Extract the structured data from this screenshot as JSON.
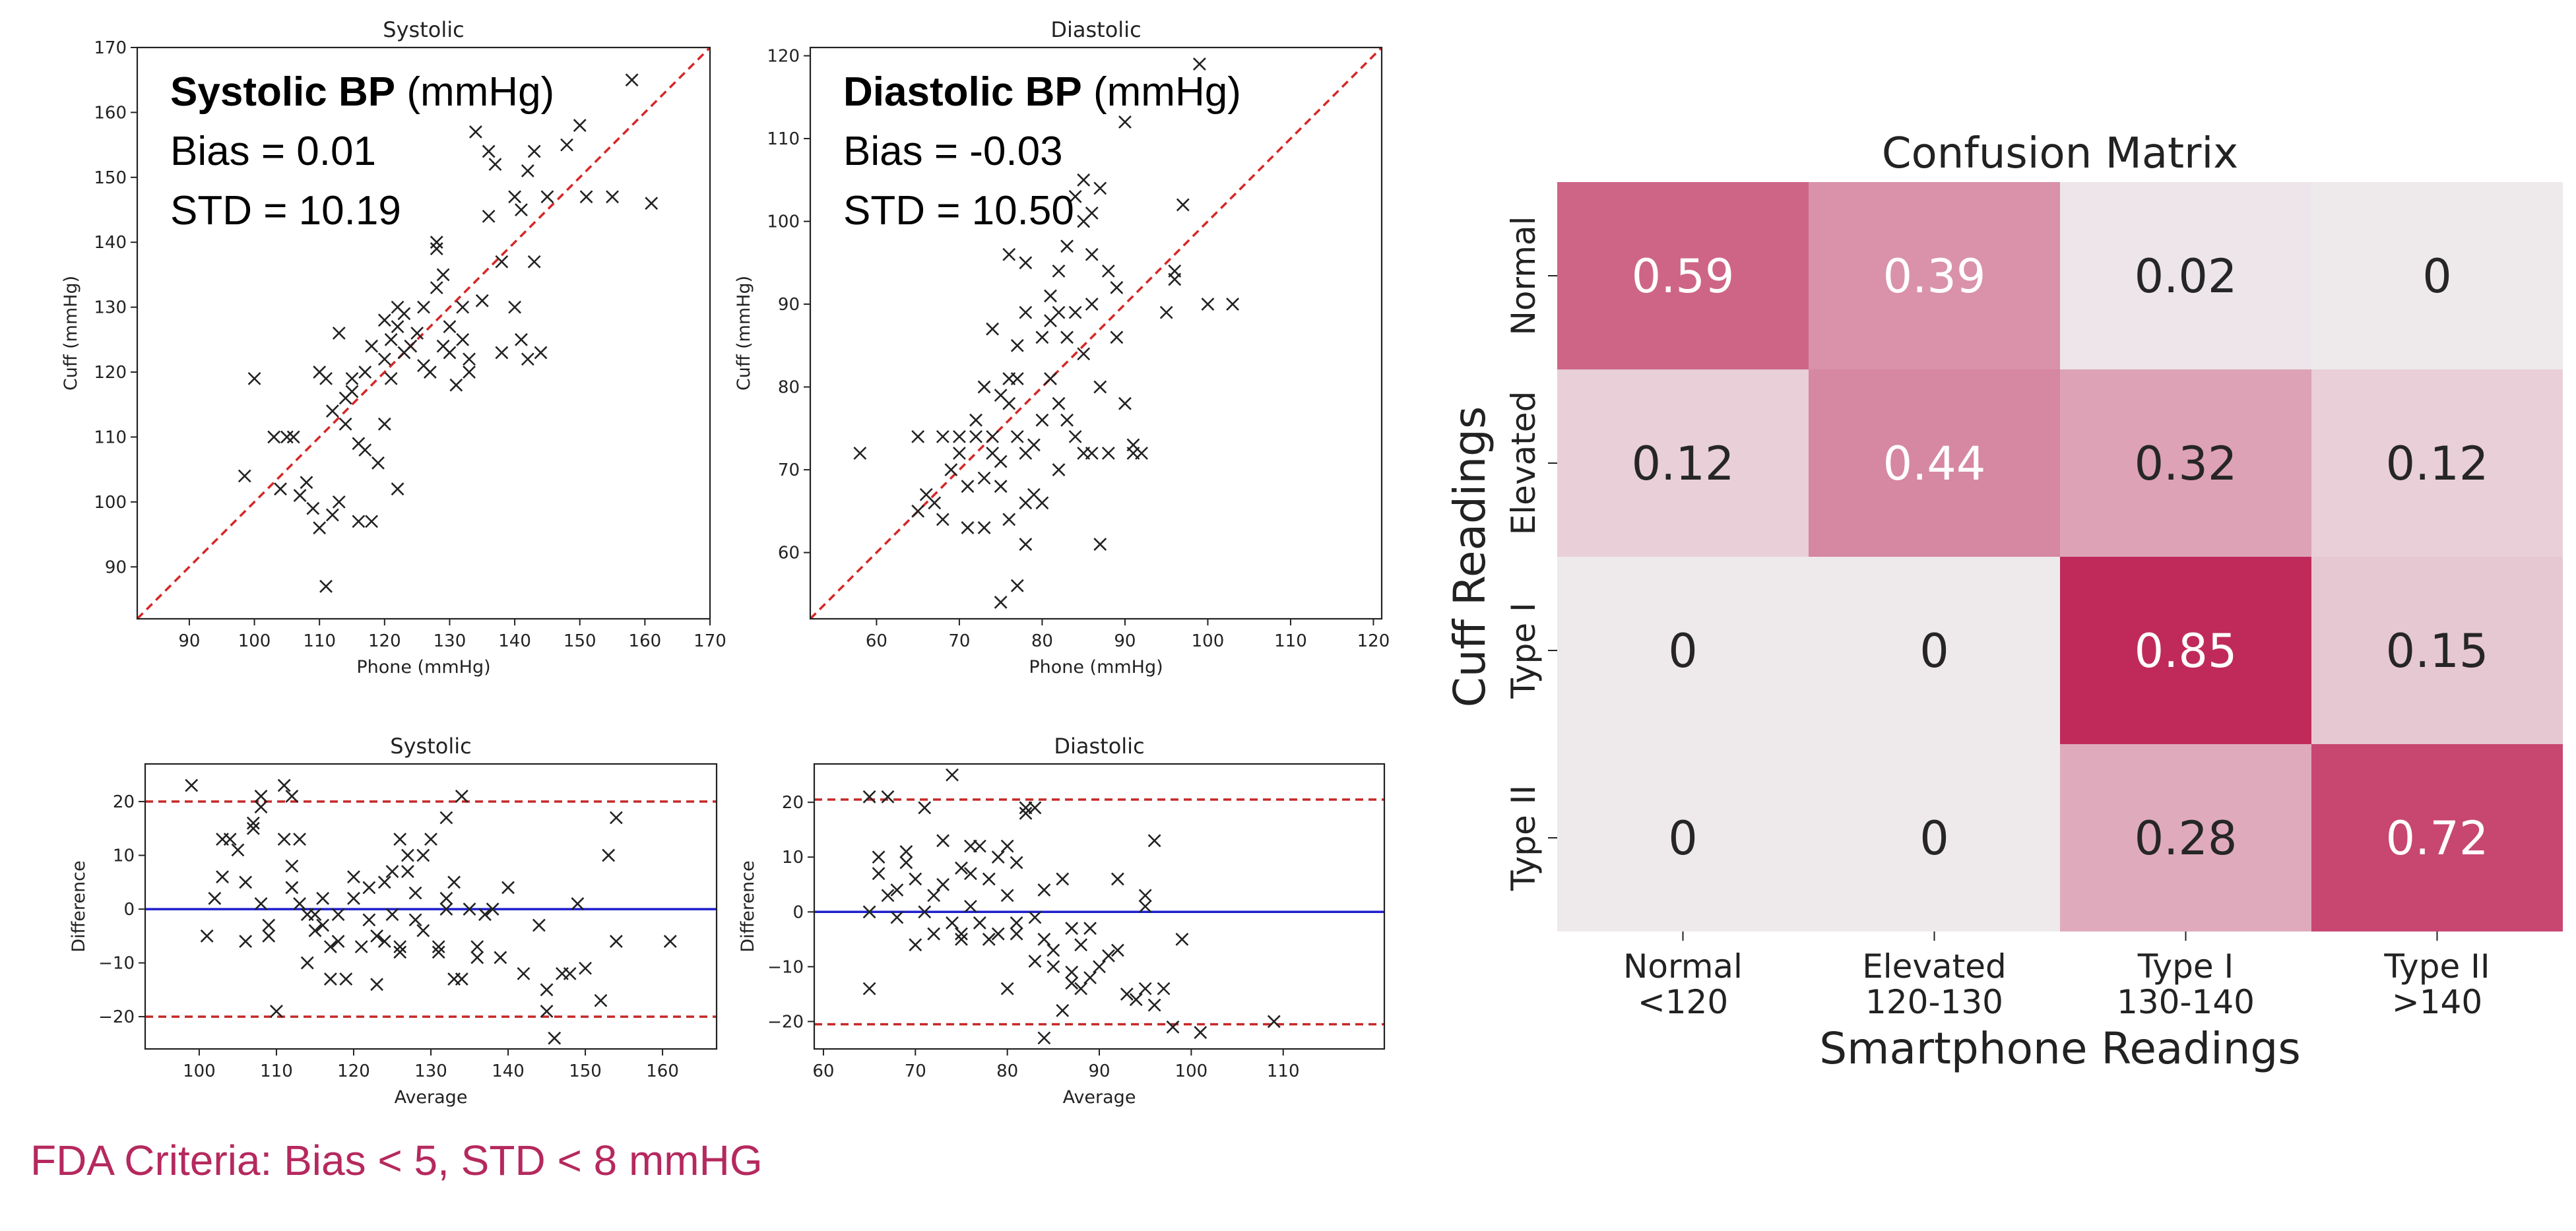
{
  "caption": "FDA Criteria: Bias < 5, STD < 8 mmHG",
  "colors": {
    "marker": "#222222",
    "identity_line": "#d62728",
    "limit_line": "#c62828",
    "mean_line": "#1f1fcc",
    "heat_low": "#eeeaec",
    "heat_high": "#c02a5b"
  },
  "chart_data": [
    {
      "type": "scatter",
      "title": "Systolic",
      "xlabel": "Phone (mmHg)",
      "ylabel": "Cuff (mmHg)",
      "xlim": [
        82,
        170
      ],
      "ylim": [
        82,
        170
      ],
      "xticks": [
        90,
        100,
        110,
        120,
        130,
        140,
        150,
        160,
        170
      ],
      "yticks": [
        90,
        100,
        110,
        120,
        130,
        140,
        150,
        160,
        170
      ],
      "reference_line": "y = x",
      "annotation": {
        "bold": "Systolic BP",
        "unit": " (mmHg)",
        "lines": [
          "Bias = 0.01",
          "STD = 10.19"
        ]
      },
      "points": [
        [
          98.5,
          104
        ],
        [
          100,
          119
        ],
        [
          103,
          110
        ],
        [
          104,
          102
        ],
        [
          105,
          110
        ],
        [
          106,
          110
        ],
        [
          107,
          101
        ],
        [
          108,
          103
        ],
        [
          109,
          99
        ],
        [
          110,
          96
        ],
        [
          110,
          120
        ],
        [
          111,
          119
        ],
        [
          111,
          87
        ],
        [
          112,
          114
        ],
        [
          112,
          98
        ],
        [
          113,
          126
        ],
        [
          113,
          100
        ],
        [
          114,
          112
        ],
        [
          114,
          116
        ],
        [
          115,
          117
        ],
        [
          115,
          119
        ],
        [
          116,
          97
        ],
        [
          116,
          109
        ],
        [
          117,
          120
        ],
        [
          117,
          108
        ],
        [
          118,
          124
        ],
        [
          118,
          97
        ],
        [
          119,
          106
        ],
        [
          120,
          122
        ],
        [
          120,
          128
        ],
        [
          120,
          112
        ],
        [
          121,
          125
        ],
        [
          121,
          119
        ],
        [
          122,
          130
        ],
        [
          122,
          127
        ],
        [
          122,
          102
        ],
        [
          123,
          129
        ],
        [
          123,
          123
        ],
        [
          124,
          124
        ],
        [
          125,
          126
        ],
        [
          126,
          121
        ],
        [
          126,
          130
        ],
        [
          127,
          120
        ],
        [
          128,
          133
        ],
        [
          128,
          139
        ],
        [
          128,
          140
        ],
        [
          129,
          124
        ],
        [
          129,
          135
        ],
        [
          130,
          123
        ],
        [
          130,
          127
        ],
        [
          131,
          118
        ],
        [
          132,
          125
        ],
        [
          132,
          130
        ],
        [
          133,
          120
        ],
        [
          133,
          122
        ],
        [
          134,
          157
        ],
        [
          135,
          131
        ],
        [
          136,
          144
        ],
        [
          136,
          154
        ],
        [
          137,
          152
        ],
        [
          138,
          123
        ],
        [
          138,
          137
        ],
        [
          140,
          147
        ],
        [
          140,
          130
        ],
        [
          141,
          145
        ],
        [
          141,
          125
        ],
        [
          142,
          151
        ],
        [
          142,
          122
        ],
        [
          143,
          154
        ],
        [
          143,
          137
        ],
        [
          144,
          123
        ],
        [
          145,
          147
        ],
        [
          148,
          155
        ],
        [
          150,
          158
        ],
        [
          151,
          147
        ],
        [
          155,
          147
        ],
        [
          158,
          165
        ],
        [
          161,
          146
        ]
      ]
    },
    {
      "type": "scatter",
      "title": "Diastolic",
      "xlabel": "Phone (mmHg)",
      "ylabel": "Cuff (mmHg)",
      "xlim": [
        52,
        121
      ],
      "ylim": [
        52,
        121
      ],
      "xticks": [
        60,
        70,
        80,
        90,
        100,
        110,
        120
      ],
      "yticks": [
        60,
        70,
        80,
        90,
        100,
        110,
        120
      ],
      "reference_line": "y = x",
      "annotation": {
        "bold": "Diastolic BP",
        "unit": " (mmHg)",
        "lines": [
          "Bias = -0.03",
          "STD = 10.50"
        ]
      },
      "points": [
        [
          58,
          72
        ],
        [
          65,
          74
        ],
        [
          65,
          65
        ],
        [
          66,
          67
        ],
        [
          67,
          66
        ],
        [
          68,
          64
        ],
        [
          68,
          74
        ],
        [
          69,
          70
        ],
        [
          70,
          72
        ],
        [
          70,
          74
        ],
        [
          71,
          68
        ],
        [
          71,
          63
        ],
        [
          72,
          74
        ],
        [
          72,
          76
        ],
        [
          73,
          80
        ],
        [
          73,
          69
        ],
        [
          73,
          63
        ],
        [
          74,
          74
        ],
        [
          74,
          72
        ],
        [
          74,
          87
        ],
        [
          75,
          79
        ],
        [
          75,
          68
        ],
        [
          75,
          71
        ],
        [
          75,
          54
        ],
        [
          76,
          78
        ],
        [
          76,
          96
        ],
        [
          76,
          81
        ],
        [
          76,
          64
        ],
        [
          77,
          81
        ],
        [
          77,
          85
        ],
        [
          77,
          74
        ],
        [
          77,
          56
        ],
        [
          78,
          95
        ],
        [
          78,
          89
        ],
        [
          78,
          66
        ],
        [
          78,
          72
        ],
        [
          78,
          61
        ],
        [
          79,
          73
        ],
        [
          79,
          67
        ],
        [
          80,
          76
        ],
        [
          80,
          86
        ],
        [
          80,
          66
        ],
        [
          81,
          91
        ],
        [
          81,
          88
        ],
        [
          81,
          81
        ],
        [
          82,
          89
        ],
        [
          82,
          94
        ],
        [
          82,
          78
        ],
        [
          82,
          70
        ],
        [
          83,
          97
        ],
        [
          83,
          86
        ],
        [
          83,
          76
        ],
        [
          84,
          103
        ],
        [
          84,
          89
        ],
        [
          84,
          74
        ],
        [
          85,
          105
        ],
        [
          85,
          100
        ],
        [
          85,
          84
        ],
        [
          85,
          72
        ],
        [
          86,
          101
        ],
        [
          86,
          90
        ],
        [
          86,
          96
        ],
        [
          86,
          72
        ],
        [
          87,
          104
        ],
        [
          87,
          80
        ],
        [
          87,
          61
        ],
        [
          88,
          94
        ],
        [
          88,
          72
        ],
        [
          89,
          92
        ],
        [
          89,
          86
        ],
        [
          90,
          112
        ],
        [
          90,
          78
        ],
        [
          91,
          73
        ],
        [
          91,
          72
        ],
        [
          92,
          72
        ],
        [
          95,
          89
        ],
        [
          96,
          94
        ],
        [
          96,
          93
        ],
        [
          97,
          102
        ],
        [
          99,
          119
        ],
        [
          100,
          90
        ],
        [
          103,
          90
        ]
      ]
    },
    {
      "type": "scatter",
      "title": "Systolic",
      "xlabel": "Average",
      "ylabel": "Difference",
      "xlim": [
        93,
        167
      ],
      "ylim": [
        -26,
        27
      ],
      "xticks": [
        100,
        110,
        120,
        130,
        140,
        150,
        160
      ],
      "yticks": [
        -20,
        -10,
        0,
        10,
        20
      ],
      "mean_line": 0,
      "limit_lines": [
        20,
        -20
      ],
      "points": [
        [
          99,
          23
        ],
        [
          101,
          -5
        ],
        [
          102,
          2
        ],
        [
          103,
          6
        ],
        [
          103,
          13
        ],
        [
          104,
          13
        ],
        [
          105,
          11
        ],
        [
          106,
          5
        ],
        [
          106,
          -6
        ],
        [
          107,
          16
        ],
        [
          107,
          15
        ],
        [
          108,
          21
        ],
        [
          108,
          19
        ],
        [
          108,
          1
        ],
        [
          109,
          -3
        ],
        [
          109,
          -5
        ],
        [
          110,
          -19
        ],
        [
          111,
          23
        ],
        [
          111,
          13
        ],
        [
          112,
          21
        ],
        [
          112,
          8
        ],
        [
          112,
          4
        ],
        [
          113,
          13
        ],
        [
          113,
          1
        ],
        [
          114,
          -1
        ],
        [
          114,
          -10
        ],
        [
          115,
          -4
        ],
        [
          115,
          -1
        ],
        [
          116,
          -3
        ],
        [
          116,
          2
        ],
        [
          117,
          -7
        ],
        [
          117,
          -13
        ],
        [
          118,
          -1
        ],
        [
          118,
          -6
        ],
        [
          119,
          -13
        ],
        [
          120,
          6
        ],
        [
          120,
          2
        ],
        [
          121,
          -7
        ],
        [
          122,
          4
        ],
        [
          122,
          -2
        ],
        [
          123,
          -14
        ],
        [
          123,
          -5
        ],
        [
          124,
          5
        ],
        [
          124,
          -6
        ],
        [
          125,
          7
        ],
        [
          125,
          -1
        ],
        [
          126,
          -7
        ],
        [
          126,
          -8
        ],
        [
          126,
          13
        ],
        [
          127,
          7
        ],
        [
          127,
          10
        ],
        [
          128,
          3
        ],
        [
          128,
          -2
        ],
        [
          129,
          -4
        ],
        [
          129,
          10
        ],
        [
          130,
          13
        ],
        [
          131,
          -7
        ],
        [
          131,
          -8
        ],
        [
          132,
          2
        ],
        [
          132,
          0
        ],
        [
          132,
          17
        ],
        [
          133,
          5
        ],
        [
          133,
          -13
        ],
        [
          134,
          -13
        ],
        [
          134,
          21
        ],
        [
          135,
          0
        ],
        [
          136,
          -7
        ],
        [
          136,
          -9
        ],
        [
          137,
          -1
        ],
        [
          138,
          0
        ],
        [
          139,
          -9
        ],
        [
          140,
          4
        ],
        [
          142,
          -12
        ],
        [
          144,
          -3
        ],
        [
          145,
          -15
        ],
        [
          145,
          -19
        ],
        [
          146,
          -24
        ],
        [
          147,
          -12
        ],
        [
          148,
          -12
        ],
        [
          149,
          1
        ],
        [
          150,
          -11
        ],
        [
          152,
          -17
        ],
        [
          153,
          10
        ],
        [
          154,
          17
        ],
        [
          154,
          -6
        ],
        [
          161,
          -6
        ]
      ]
    },
    {
      "type": "scatter",
      "title": "Diastolic",
      "xlabel": "Average",
      "ylabel": "Difference",
      "xlim": [
        59,
        121
      ],
      "ylim": [
        -25,
        27
      ],
      "xticks": [
        60,
        70,
        80,
        90,
        100,
        110
      ],
      "yticks": [
        -20,
        -10,
        0,
        10,
        20
      ],
      "mean_line": 0,
      "limit_lines": [
        20.5,
        -20.5
      ],
      "points": [
        [
          65,
          21
        ],
        [
          65,
          0
        ],
        [
          65,
          -14
        ],
        [
          66,
          10
        ],
        [
          66,
          7
        ],
        [
          67,
          3
        ],
        [
          67,
          21
        ],
        [
          68,
          4
        ],
        [
          68,
          -1
        ],
        [
          69,
          9
        ],
        [
          69,
          11
        ],
        [
          70,
          6
        ],
        [
          70,
          -6
        ],
        [
          71,
          19
        ],
        [
          71,
          0
        ],
        [
          72,
          -4
        ],
        [
          72,
          3
        ],
        [
          73,
          13
        ],
        [
          73,
          5
        ],
        [
          74,
          25
        ],
        [
          74,
          -2
        ],
        [
          75,
          8
        ],
        [
          75,
          -4
        ],
        [
          75,
          -5
        ],
        [
          76,
          12
        ],
        [
          76,
          7
        ],
        [
          76,
          1
        ],
        [
          77,
          12
        ],
        [
          77,
          -2
        ],
        [
          78,
          6
        ],
        [
          78,
          -5
        ],
        [
          79,
          -4
        ],
        [
          79,
          10
        ],
        [
          80,
          12
        ],
        [
          80,
          3
        ],
        [
          80,
          -14
        ],
        [
          81,
          -2
        ],
        [
          81,
          -4
        ],
        [
          81,
          9
        ],
        [
          82,
          19
        ],
        [
          82,
          18
        ],
        [
          83,
          19
        ],
        [
          83,
          -1
        ],
        [
          83,
          -9
        ],
        [
          84,
          4
        ],
        [
          84,
          -5
        ],
        [
          84,
          -23
        ],
        [
          85,
          -7
        ],
        [
          85,
          -10
        ],
        [
          86,
          -18
        ],
        [
          86,
          6
        ],
        [
          87,
          -3
        ],
        [
          87,
          -11
        ],
        [
          87,
          -13
        ],
        [
          88,
          -6
        ],
        [
          88,
          -14
        ],
        [
          89,
          -3
        ],
        [
          89,
          -12
        ],
        [
          90,
          -10
        ],
        [
          91,
          -8
        ],
        [
          92,
          6
        ],
        [
          92,
          -7
        ],
        [
          93,
          -15
        ],
        [
          94,
          -16
        ],
        [
          95,
          -14
        ],
        [
          95,
          3
        ],
        [
          95,
          1
        ],
        [
          96,
          -17
        ],
        [
          96,
          13
        ],
        [
          97,
          -14
        ],
        [
          98,
          -21
        ],
        [
          99,
          -5
        ],
        [
          101,
          -22
        ],
        [
          109,
          -20
        ]
      ]
    },
    {
      "type": "heatmap",
      "title": "Confusion Matrix",
      "xlabel": "Smartphone Readings",
      "ylabel": "Cuff Readings",
      "x_categories": [
        [
          "Normal",
          "<120"
        ],
        [
          "Elevated",
          "120-130"
        ],
        [
          "Type I",
          "130-140"
        ],
        [
          "Type II",
          ">140"
        ]
      ],
      "y_categories": [
        "Normal",
        "Elevated",
        "Type I",
        "Type II"
      ],
      "values": [
        [
          0.59,
          0.39,
          0.02,
          0
        ],
        [
          0.12,
          0.44,
          0.32,
          0.12
        ],
        [
          0,
          0,
          0.85,
          0.15
        ],
        [
          0,
          0,
          0.28,
          0.72
        ]
      ],
      "value_labels": [
        [
          "0.59",
          "0.39",
          "0.02",
          "0"
        ],
        [
          "0.12",
          "0.44",
          "0.32",
          "0.12"
        ],
        [
          "0",
          "0",
          "0.85",
          "0.15"
        ],
        [
          "0",
          "0",
          "0.28",
          "0.72"
        ]
      ],
      "vmin": 0,
      "vmax": 0.85
    }
  ]
}
